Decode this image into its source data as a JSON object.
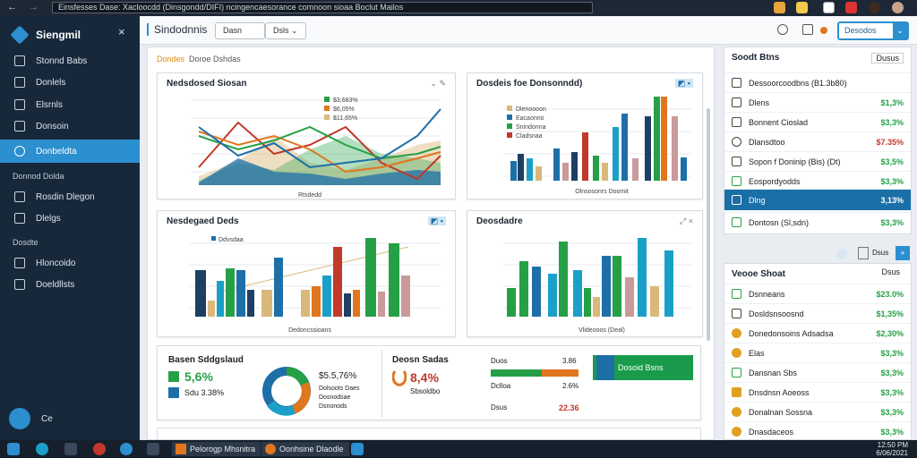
{
  "browser": {
    "url": "Einsfesses Dase: Xacloocdd (Dinsgondd/DIFI) ncingencaesorance comnoon sioaa Boclut Mailos",
    "back": "←",
    "fwd": "→"
  },
  "sidebar": {
    "brand": "Siengmil",
    "close": "×",
    "items": [
      {
        "label": "Stonnd Babs"
      },
      {
        "label": "Donlels"
      },
      {
        "label": "Elsrnls"
      },
      {
        "label": "Donsoin"
      },
      {
        "label": "Donbeldta"
      }
    ],
    "section1": "Donnod Dolda",
    "section_items": [
      {
        "label": "Rosdin Dlegon"
      },
      {
        "label": "Dlelgs"
      }
    ],
    "section2": "Dosdte",
    "section2_items": [
      {
        "label": "Hloncoido"
      },
      {
        "label": "Doeldllsts"
      }
    ],
    "user": "Ce"
  },
  "header": {
    "title": "Sindodnnis",
    "select1": "Dasn",
    "select2": "Dsls",
    "cta": "Desodos"
  },
  "main": {
    "crumb_accent": "Dondes",
    "crumb_rest": "Doroe Dshdas",
    "colors": {
      "blue": "#1e6fa8",
      "teal": "#1aa0c8",
      "green": "#26a047",
      "orange": "#e0761d",
      "red": "#c0392b",
      "tan": "#d9b87a",
      "navy": "#1d3f63",
      "rose": "#c99a9a"
    },
    "card1": {
      "title": "Nedsdosed Siosan",
      "legend": [
        "$3,683%",
        "$6,05%",
        "$11,65%"
      ],
      "xlabel": "Rtsdedd"
    },
    "card2": {
      "title": "Dosdeis foe Donsonndd)",
      "legend": [
        "Dlenoooon",
        "Eacaonno",
        "Snindonna",
        "Cladsnaa"
      ],
      "xlabel": "Olnsosonrs Doomit"
    },
    "card3": {
      "title": "Nesdegaed Deds",
      "legend": "Ddvsdaa",
      "xlabel": "Dedoncssioans"
    },
    "card4": {
      "title": "Deosdadre",
      "xlabel": "Vlideooos (Deal)"
    },
    "bottom": {
      "t1": "Basen Sddgslaud",
      "v1": "5,6%",
      "s1": "Sdu 3.38%",
      "donut_val": "$5.5,76%",
      "donut_lines": [
        "Dolsoots Daes",
        "Dosnodsae",
        "Dsnonods"
      ],
      "t2": "Deosn Sadas",
      "v2": "8,4%",
      "s2": "Sbsoldbo",
      "bar_label": "Duos",
      "bar_val1": "3.86",
      "bar_val2": "2.6%",
      "bar_val3": "22.36",
      "bar_l2": "Dclloa",
      "bar_l3": "Dsus",
      "cta": "Dosoid Bsns"
    }
  },
  "right": {
    "panel1_title": "Soodt Btns",
    "panel1_action": "Dusus",
    "rows1": [
      {
        "label": "Dessoorcoodbns (B1.3b80)",
        "value": "",
        "color": "#222"
      },
      {
        "label": "Dlens",
        "value": "$1,3%",
        "color": "#26a047"
      },
      {
        "label": "Bonnent Cioslad",
        "value": "$3,3%",
        "color": "#26a047"
      },
      {
        "label": "Dlansdtoo",
        "value": "$7.35%",
        "color": "#c0392b"
      },
      {
        "label": "Sopon f Doninip (Bis) (Dt)",
        "value": "$3,5%",
        "color": "#26a047"
      },
      {
        "label": "Eospordyodds",
        "value": "$3,3%",
        "color": "#26a047"
      },
      {
        "label": "Dlng",
        "value": "3,13%",
        "color": "#fff"
      },
      {
        "label": "Dontosn (Sl,sdn)",
        "value": "$3,3%",
        "color": "#26a047"
      }
    ],
    "panel2_title": "Veooe Shoat",
    "panel2_btn": "Dsus",
    "rows2": [
      {
        "label": "Dsnneans",
        "value": "$23.0%",
        "color": "#26a047"
      },
      {
        "label": "Dosldsnsoosnd",
        "value": "$1,35%",
        "color": "#26a047"
      },
      {
        "label": "Donedonsoins Adsadsa",
        "value": "$2,30%",
        "color": "#26a047"
      },
      {
        "label": "Elas",
        "value": "$3,3%",
        "color": "#26a047"
      },
      {
        "label": "Dansnan Sbs",
        "value": "$3,3%",
        "color": "#26a047"
      },
      {
        "label": "Dnsdnsn Aoeoss",
        "value": "$3,3%",
        "color": "#26a047"
      },
      {
        "label": "Donalnan Sossna",
        "value": "$3,3%",
        "color": "#26a047"
      },
      {
        "label": "Dnasdaceos",
        "value": "$3,3%",
        "color": "#26a047"
      }
    ]
  },
  "taskbar": {
    "app1": "Pelorogp Mhsnitra",
    "app2": "Oonhsine Dlaodle",
    "time": "12:50 PM",
    "date": "6/06/2021"
  }
}
